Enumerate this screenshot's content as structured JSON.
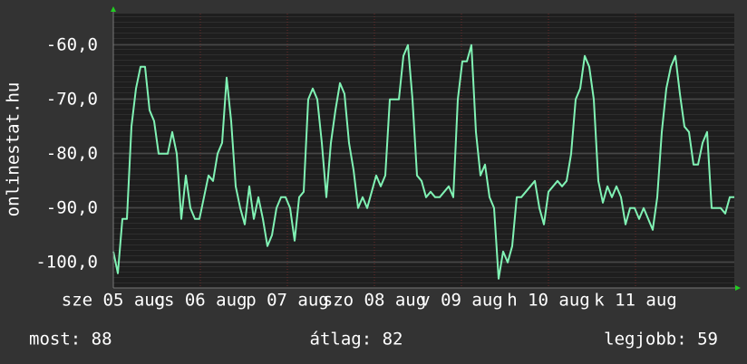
{
  "chart_data": {
    "type": "line",
    "y_axis_label": "onlinestat.hu",
    "xlim": [
      0,
      137
    ],
    "xticks": [
      {
        "value": 0,
        "label": "sze 05 aug"
      },
      {
        "value": 19.2,
        "label": "cs 06 aug"
      },
      {
        "value": 38.4,
        "label": "p 07 aug"
      },
      {
        "value": 57.6,
        "label": "szo 08 aug"
      },
      {
        "value": 76.8,
        "label": "v 09 aug"
      },
      {
        "value": 96,
        "label": "h 10 aug"
      },
      {
        "value": 115.2,
        "label": "k 11 aug"
      }
    ],
    "ylim": [
      -104.7,
      -54.2
    ],
    "yticks": [
      {
        "value": -60,
        "label": "-60,0"
      },
      {
        "value": -70,
        "label": "-70,0"
      },
      {
        "value": -80,
        "label": "-80,0"
      },
      {
        "value": -90,
        "label": "-90,0"
      },
      {
        "value": -100,
        "label": "-100,0"
      }
    ],
    "grid": true,
    "color": "#80f2b4",
    "values": [
      -98,
      -102,
      -92,
      -92,
      -75,
      -68,
      -64,
      -64,
      -72,
      -74,
      -80,
      -80,
      -80,
      -76,
      -80,
      -92,
      -84,
      -90,
      -92,
      -92,
      -88,
      -84,
      -85,
      -80,
      -78,
      -66,
      -74,
      -86,
      -90,
      -93,
      -86,
      -92,
      -88,
      -92,
      -97,
      -95,
      -90,
      -88,
      -88,
      -90,
      -96,
      -88,
      -87,
      -70,
      -68,
      -70,
      -78,
      -88,
      -78,
      -72,
      -67,
      -69,
      -78,
      -83,
      -90,
      -88,
      -90,
      -87,
      -84,
      -86,
      -84,
      -70,
      -70,
      -70,
      -62,
      -60,
      -70,
      -84,
      -85,
      -88,
      -87,
      -88,
      -88,
      -87,
      -86,
      -88,
      -70,
      -63,
      -63,
      -60,
      -76,
      -84,
      -82,
      -88,
      -90,
      -103,
      -98,
      -100,
      -97,
      -88,
      -88,
      -87,
      -86,
      -85,
      -90,
      -93,
      -87,
      -86,
      -85,
      -86,
      -85,
      -80,
      -70,
      -68,
      -62,
      -64,
      -70,
      -85,
      -89,
      -86,
      -88,
      -86,
      -88,
      -93,
      -90,
      -90,
      -92,
      -90,
      -92,
      -94,
      -88,
      -76,
      -68,
      -64,
      -62,
      -69,
      -75,
      -76,
      -82,
      -82,
      -78,
      -76,
      -90,
      -90,
      -90,
      -91,
      -88,
      -88
    ],
    "footer": {
      "current": "most: 88",
      "average": "átlag: 82",
      "best": "legjobb: 59"
    }
  }
}
